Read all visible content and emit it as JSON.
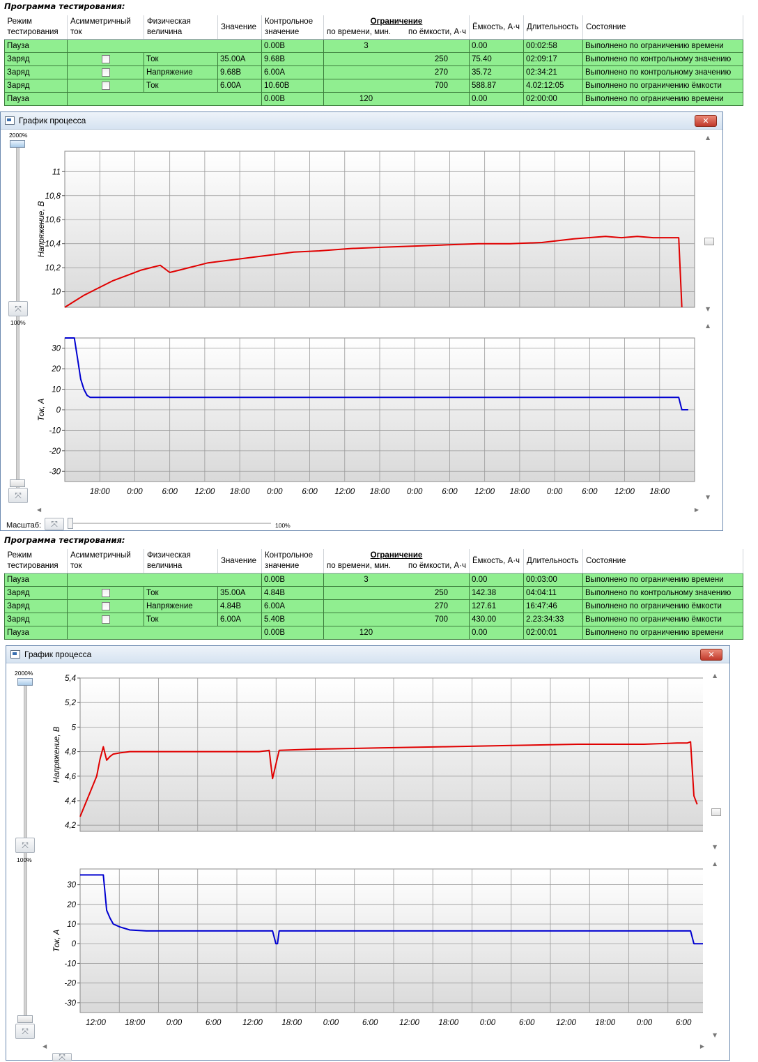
{
  "sections": [
    {
      "program_title": "Программа тестирования:",
      "headers": {
        "mode": [
          "Режим",
          "тестирования"
        ],
        "asym": [
          "Асимметричный",
          "ток"
        ],
        "physical": [
          "Физическая",
          "величина"
        ],
        "value": "Значение",
        "control": [
          "Контрольное",
          "значение"
        ],
        "limit_title": "Ограничение",
        "limit_time": "по времени, мин.",
        "limit_cap": "по ёмкости, А·ч",
        "capacity": "Ёмкость, А·ч",
        "duration": "Длительность",
        "state": "Состояние"
      },
      "rows": [
        {
          "mode": "Пауза",
          "checkbox": false,
          "physical": "",
          "value": "",
          "control": "0.00В",
          "time_limit": "3",
          "cap_limit": "",
          "capacity": "0.00",
          "duration": "00:02:58",
          "state": "Выполнено по ограничению времени"
        },
        {
          "mode": "Заряд",
          "checkbox": true,
          "physical": "Ток",
          "value": "35.00А",
          "control": "9.68В",
          "time_limit": "",
          "cap_limit": "250",
          "capacity": "75.40",
          "duration": "02:09:17",
          "state": "Выполнено по контрольному значению"
        },
        {
          "mode": "Заряд",
          "checkbox": true,
          "physical": "Напряжение",
          "value": "9.68В",
          "control": "6.00А",
          "time_limit": "",
          "cap_limit": "270",
          "capacity": "35.72",
          "duration": "02:34:21",
          "state": "Выполнено по контрольному значению"
        },
        {
          "mode": "Заряд",
          "checkbox": true,
          "physical": "Ток",
          "value": "6.00А",
          "control": "10.60В",
          "time_limit": "",
          "cap_limit": "700",
          "capacity": "588.87",
          "duration": "4.02:12:05",
          "state": "Выполнено по ограничению ёмкости"
        },
        {
          "mode": "Пауза",
          "checkbox": false,
          "physical": "",
          "value": "",
          "control": "0.00В",
          "time_limit": "120",
          "cap_limit": "",
          "capacity": "0.00",
          "duration": "02:00:00",
          "state": "Выполнено по ограничению времени"
        }
      ],
      "window_title": "График процесса",
      "close_label": "✕",
      "zoom_top_label": "2000%",
      "zoom_mid_label": "100%",
      "scale_label": "Масштаб:",
      "scale_value": "100%",
      "voltage_chart": {
        "ylabel": "Напряжение, В",
        "yticks": [
          "10",
          "10,2",
          "10,4",
          "10,6",
          "10,8",
          "11"
        ],
        "color": "#e00000"
      },
      "current_chart": {
        "ylabel": "Ток, А",
        "yticks": [
          "-30",
          "-20",
          "-10",
          "0",
          "10",
          "20",
          "30"
        ],
        "color": "#0000d0"
      },
      "xticks": [
        "18:00",
        "0:00",
        "6:00",
        "12:00",
        "18:00",
        "0:00",
        "6:00",
        "12:00",
        "18:00",
        "0:00",
        "6:00",
        "12:00",
        "18:00",
        "0:00",
        "6:00",
        "12:00",
        "18:00"
      ]
    },
    {
      "program_title": "Программа тестирования:",
      "headers": {
        "mode": [
          "Режим",
          "тестирования"
        ],
        "asym": [
          "Асимметричный",
          "ток"
        ],
        "physical": [
          "Физическая",
          "величина"
        ],
        "value": "Значение",
        "control": [
          "Контрольное",
          "значение"
        ],
        "limit_title": "Ограничение",
        "limit_time": "по времени, мин.",
        "limit_cap": "по ёмкости, А·ч",
        "capacity": "Ёмкость, А·ч",
        "duration": "Длительность",
        "state": "Состояние"
      },
      "rows": [
        {
          "mode": "Пауза",
          "checkbox": false,
          "physical": "",
          "value": "",
          "control": "0.00В",
          "time_limit": "3",
          "cap_limit": "",
          "capacity": "0.00",
          "duration": "00:03:00",
          "state": "Выполнено по ограничению времени"
        },
        {
          "mode": "Заряд",
          "checkbox": true,
          "physical": "Ток",
          "value": "35.00А",
          "control": "4.84В",
          "time_limit": "",
          "cap_limit": "250",
          "capacity": "142.38",
          "duration": "04:04:11",
          "state": "Выполнено по контрольному значению"
        },
        {
          "mode": "Заряд",
          "checkbox": true,
          "physical": "Напряжение",
          "value": "4.84В",
          "control": "6.00А",
          "time_limit": "",
          "cap_limit": "270",
          "capacity": "127.61",
          "duration": "16:47:46",
          "state": "Выполнено по ограничению ёмкости"
        },
        {
          "mode": "Заряд",
          "checkbox": true,
          "physical": "Ток",
          "value": "6.00А",
          "control": "5.40В",
          "time_limit": "",
          "cap_limit": "700",
          "capacity": "430.00",
          "duration": "2.23:34:33",
          "state": "Выполнено по ограничению ёмкости"
        },
        {
          "mode": "Пауза",
          "checkbox": false,
          "physical": "",
          "value": "",
          "control": "0.00В",
          "time_limit": "120",
          "cap_limit": "",
          "capacity": "0.00",
          "duration": "02:00:01",
          "state": "Выполнено по ограничению времени"
        }
      ],
      "window_title": "График процесса",
      "close_label": "✕",
      "zoom_top_label": "2000%",
      "zoom_mid_label": "100%",
      "voltage_chart": {
        "ylabel": "Напряжение, В",
        "yticks": [
          "4,2",
          "4,4",
          "4,6",
          "4,8",
          "5",
          "5,2",
          "5,4"
        ],
        "color": "#e00000"
      },
      "current_chart": {
        "ylabel": "Ток, А",
        "yticks": [
          "-30",
          "-20",
          "-10",
          "0",
          "10",
          "20",
          "30"
        ],
        "color": "#0000d0"
      },
      "xticks": [
        "12:00",
        "18:00",
        "0:00",
        "6:00",
        "12:00",
        "18:00",
        "0:00",
        "6:00",
        "12:00",
        "18:00",
        "0:00",
        "6:00",
        "12:00",
        "18:00",
        "0:00",
        "6:00"
      ]
    }
  ],
  "chart_data": [
    {
      "type": "line",
      "ylabel": "Напряжение, В",
      "ylim": [
        9.87,
        11.17
      ],
      "x_tick_labels": [
        "18:00",
        "0:00",
        "6:00",
        "12:00",
        "18:00",
        "0:00",
        "6:00",
        "12:00",
        "18:00",
        "0:00",
        "6:00",
        "12:00",
        "18:00",
        "0:00",
        "6:00",
        "12:00",
        "18:00"
      ],
      "x_unit": "hours",
      "x": [
        0,
        3,
        6,
        9,
        12,
        15,
        18,
        21,
        24,
        27,
        30,
        33,
        36,
        39,
        42,
        45,
        48,
        54,
        60,
        66,
        72,
        80,
        90,
        100,
        110,
        120,
        130,
        140,
        150,
        160,
        170,
        175,
        180,
        185,
        190,
        193,
        194
      ],
      "series": [
        {
          "values": [
            9.87,
            9.92,
            9.97,
            10.01,
            10.05,
            10.09,
            10.12,
            10.15,
            10.18,
            10.2,
            10.22,
            10.16,
            10.18,
            10.2,
            10.22,
            10.24,
            10.25,
            10.27,
            10.29,
            10.31,
            10.33,
            10.34,
            10.36,
            10.37,
            10.38,
            10.39,
            10.4,
            10.4,
            10.41,
            10.44,
            10.46,
            10.45,
            10.46,
            10.45,
            10.45,
            10.45,
            9.87
          ]
        }
      ]
    },
    {
      "type": "line",
      "ylabel": "Ток, А",
      "ylim": [
        -35,
        35
      ],
      "x_tick_labels": [
        "18:00",
        "0:00",
        "6:00",
        "12:00",
        "18:00",
        "0:00",
        "6:00",
        "12:00",
        "18:00",
        "0:00",
        "6:00",
        "12:00",
        "18:00",
        "0:00",
        "6:00",
        "12:00",
        "18:00"
      ],
      "x_unit": "hours",
      "x": [
        0,
        3,
        4,
        5,
        6,
        7,
        8,
        10,
        190,
        193,
        194,
        196
      ],
      "series": [
        {
          "values": [
            35,
            35,
            25,
            15,
            10,
            7,
            6,
            6,
            6,
            6,
            0,
            0
          ]
        }
      ]
    },
    {
      "type": "line",
      "ylabel": "Напряжение, В",
      "ylim": [
        4.15,
        5.4
      ],
      "x_tick_labels": [
        "12:00",
        "18:00",
        "0:00",
        "6:00",
        "12:00",
        "18:00",
        "0:00",
        "6:00",
        "12:00",
        "18:00",
        "0:00",
        "6:00",
        "12:00",
        "18:00",
        "0:00",
        "6:00"
      ],
      "x_unit": "hours",
      "x": [
        0,
        5,
        6,
        7,
        8,
        9,
        10,
        12,
        15,
        18,
        48,
        51,
        54,
        57,
        58,
        60,
        70,
        90,
        110,
        130,
        150,
        170,
        180,
        183,
        184,
        185,
        186
      ],
      "series": [
        {
          "values": [
            4.27,
            4.6,
            4.74,
            4.84,
            4.73,
            4.76,
            4.78,
            4.79,
            4.8,
            4.8,
            4.8,
            4.8,
            4.8,
            4.81,
            4.58,
            4.81,
            4.82,
            4.83,
            4.84,
            4.85,
            4.86,
            4.86,
            4.87,
            4.87,
            4.88,
            4.44,
            4.37
          ]
        }
      ]
    },
    {
      "type": "line",
      "ylabel": "Ток, А",
      "ylim": [
        -35,
        38
      ],
      "x_tick_labels": [
        "12:00",
        "18:00",
        "0:00",
        "6:00",
        "12:00",
        "18:00",
        "0:00",
        "6:00",
        "12:00",
        "18:00",
        "0:00",
        "6:00",
        "12:00",
        "18:00",
        "0:00",
        "6:00"
      ],
      "x_unit": "hours",
      "x": [
        0,
        7,
        8,
        9,
        10,
        12,
        15,
        20,
        25,
        58,
        59,
        59.5,
        60,
        180,
        184,
        185,
        186,
        188
      ],
      "series": [
        {
          "values": [
            35,
            35,
            17,
            13,
            10,
            8.5,
            7,
            6.5,
            6.5,
            6.5,
            0,
            0,
            6.5,
            6.5,
            6.5,
            0,
            0,
            0
          ]
        }
      ]
    }
  ]
}
